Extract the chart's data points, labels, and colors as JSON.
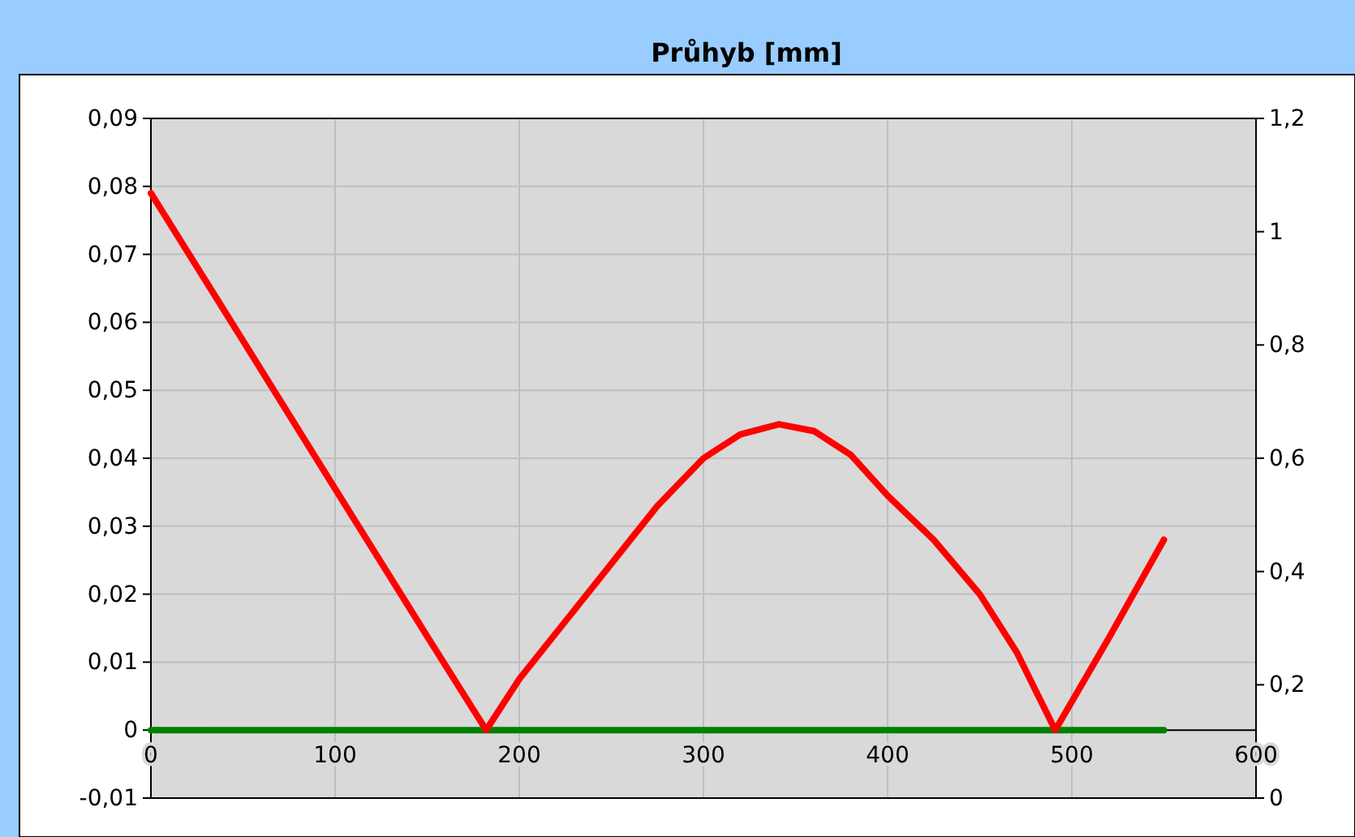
{
  "chart_data": {
    "type": "line",
    "title": "Průhyb [mm]",
    "xlim": [
      0,
      600
    ],
    "xticks": [
      0,
      100,
      200,
      300,
      400,
      500,
      600
    ],
    "ylim": [
      -0.01,
      0.09
    ],
    "yticks": [
      {
        "value": -0.01,
        "label": "-0,01"
      },
      {
        "value": 0,
        "label": "0"
      },
      {
        "value": 0.01,
        "label": "0,01"
      },
      {
        "value": 0.02,
        "label": "0,02"
      },
      {
        "value": 0.03,
        "label": "0,03"
      },
      {
        "value": 0.04,
        "label": "0,04"
      },
      {
        "value": 0.05,
        "label": "0,05"
      },
      {
        "value": 0.06,
        "label": "0,06"
      },
      {
        "value": 0.07,
        "label": "0,07"
      },
      {
        "value": 0.08,
        "label": "0,08"
      },
      {
        "value": 0.09,
        "label": "0,09"
      }
    ],
    "y2lim": [
      0,
      1.2
    ],
    "y2ticks": [
      0,
      {
        "value": 0.2,
        "label": "0,2"
      },
      {
        "value": 0.4,
        "label": "0,4"
      },
      {
        "value": 0.6,
        "label": "0,6"
      },
      {
        "value": 0.8,
        "label": "0,8"
      },
      1,
      {
        "value": 1.2,
        "label": "1,2"
      }
    ],
    "grid": true,
    "marker": "none",
    "series": [
      {
        "color": "#ff0000",
        "x": [
          0,
          50,
          100,
          150,
          182,
          200,
          225,
          250,
          275,
          300,
          320,
          341,
          360,
          380,
          400,
          425,
          450,
          470,
          491,
          520,
          550
        ],
        "values": [
          0.079,
          0.0573,
          0.0355,
          0.0138,
          0,
          0.0075,
          0.016,
          0.0245,
          0.033,
          0.04,
          0.0435,
          0.045,
          0.044,
          0.0405,
          0.0345,
          0.028,
          0.02,
          0.0115,
          0,
          0.0135,
          0.028
        ]
      },
      {
        "color": "#008000",
        "x": [
          0,
          550
        ],
        "values": [
          0,
          0
        ]
      }
    ]
  }
}
